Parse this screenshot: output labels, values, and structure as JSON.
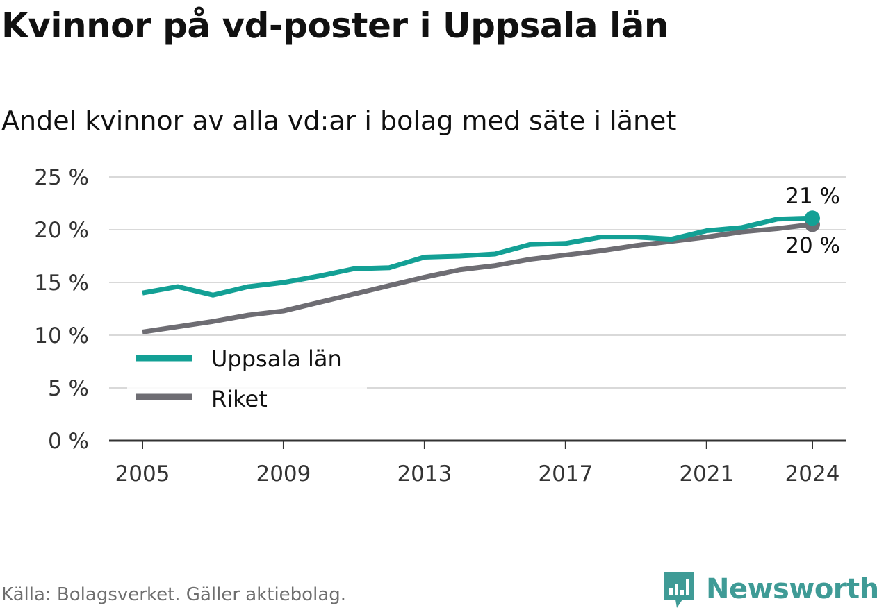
{
  "title": "Kvinnor på vd-poster i Uppsala län",
  "subtitle": "Andel kvinnor av alla vd:ar i bolag med säte i länet",
  "source": "Källa: Bolagsverket. Gäller aktiebolag.",
  "brand": "Newsworthy",
  "colors": {
    "uppsala": "#13a095",
    "riket": "#6e6d73",
    "grid": "#d9d9d9",
    "axis": "#333333",
    "brand": "#3f9b96"
  },
  "chart_data": {
    "type": "line",
    "title": "Kvinnor på vd-poster i Uppsala län",
    "subtitle": "Andel kvinnor av alla vd:ar i bolag med säte i länet",
    "xlabel": "",
    "ylabel": "",
    "x": [
      2005,
      2006,
      2007,
      2008,
      2009,
      2010,
      2011,
      2012,
      2013,
      2014,
      2015,
      2016,
      2017,
      2018,
      2019,
      2020,
      2021,
      2022,
      2023,
      2024
    ],
    "xticks": [
      2005,
      2009,
      2013,
      2017,
      2021,
      2024
    ],
    "xtick_labels": [
      "2005",
      "2009",
      "2013",
      "2017",
      "2021",
      "2024"
    ],
    "ylim": [
      0,
      25
    ],
    "yticks": [
      0,
      5,
      10,
      15,
      20,
      25
    ],
    "ytick_labels": [
      "0 %",
      "5 %",
      "10 %",
      "15 %",
      "20 %",
      "25 %"
    ],
    "grid": true,
    "legend_position": "left",
    "series": [
      {
        "name": "Uppsala län",
        "color": "#13a095",
        "values": [
          14.0,
          14.6,
          13.8,
          14.6,
          15.0,
          15.6,
          16.3,
          16.4,
          17.4,
          17.5,
          17.7,
          18.6,
          18.7,
          19.3,
          19.3,
          19.1,
          19.9,
          20.2,
          21.0,
          21.1
        ],
        "end_label": "21 %"
      },
      {
        "name": "Riket",
        "color": "#6e6d73",
        "values": [
          10.3,
          10.8,
          11.3,
          11.9,
          12.3,
          13.1,
          13.9,
          14.7,
          15.5,
          16.2,
          16.6,
          17.2,
          17.6,
          18.0,
          18.5,
          18.9,
          19.3,
          19.8,
          20.1,
          20.5
        ],
        "end_label": "20 %"
      }
    ]
  }
}
